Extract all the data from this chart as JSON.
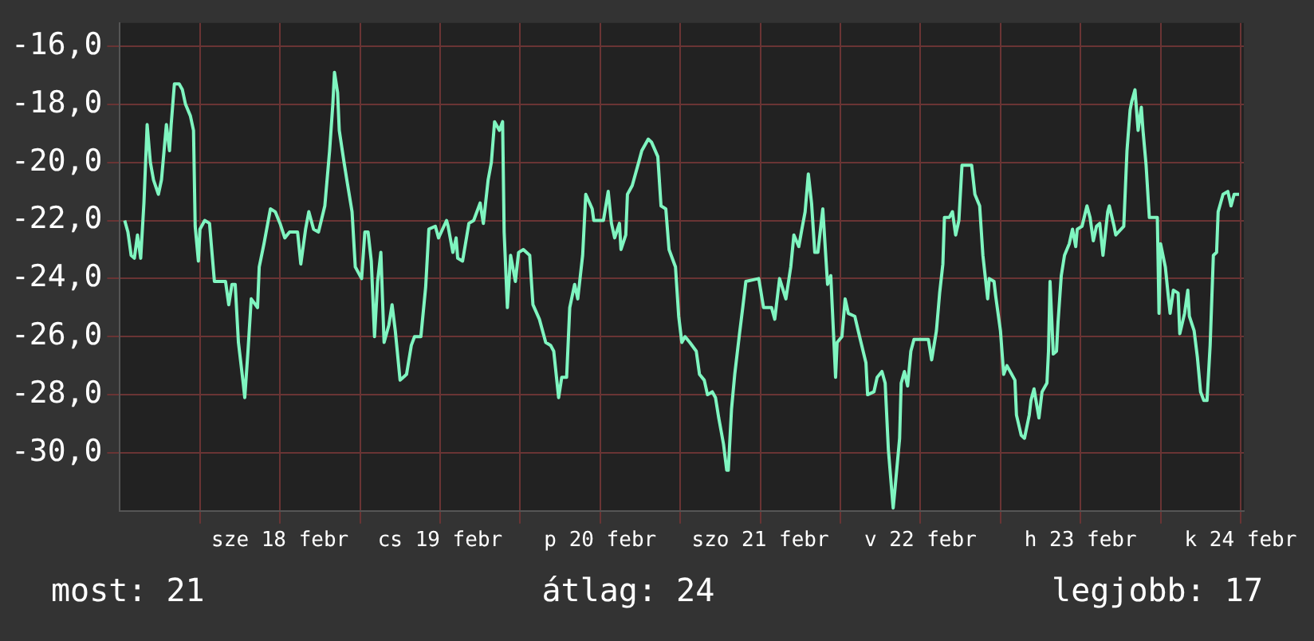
{
  "chart_data": {
    "type": "line",
    "xlim": [
      "--02-17T12:00",
      "--02-24T12:29"
    ],
    "ylim": [
      -32,
      -15.2
    ],
    "xticks": [
      {
        "value": "--02-18T00:00",
        "label": null
      },
      {
        "value": "--02-18T12:00",
        "label": "sze 18 febr"
      },
      {
        "value": "--02-19T00:00",
        "label": null
      },
      {
        "value": "--02-19T12:00",
        "label": "cs 19 febr"
      },
      {
        "value": "--02-20T00:00",
        "label": null
      },
      {
        "value": "--02-20T12:00",
        "label": "p 20 febr"
      },
      {
        "value": "--02-21T00:00",
        "label": null
      },
      {
        "value": "--02-21T12:00",
        "label": "szo 21 febr"
      },
      {
        "value": "--02-22T00:00",
        "label": null
      },
      {
        "value": "--02-22T12:00",
        "label": "v 22 febr"
      },
      {
        "value": "--02-23T00:00",
        "label": null
      },
      {
        "value": "--02-23T12:00",
        "label": "h 23 febr"
      },
      {
        "value": "--02-24T00:00",
        "label": null
      },
      {
        "value": "--02-24T12:00",
        "label": "k 24 febr"
      }
    ],
    "yticks": [
      {
        "value": -30,
        "label": "-30,0"
      },
      {
        "value": -28,
        "label": "-28,0"
      },
      {
        "value": -26,
        "label": "-26,0"
      },
      {
        "value": -24,
        "label": "-24,0"
      },
      {
        "value": -22,
        "label": "-22,0"
      },
      {
        "value": -20,
        "label": "-20,0"
      },
      {
        "value": -18,
        "label": "-18,0"
      },
      {
        "value": -16,
        "label": "-16,0"
      }
    ],
    "grid": true,
    "annotations": [
      "most: 21",
      "átlag: 24",
      "legjobb: 17"
    ],
    "series": [
      {
        "color": "#7ff5c0",
        "x": [
          "--02-17T12:43",
          "--02-17T13:12",
          "--02-17T13:41",
          "--02-17T14:10",
          "--02-17T14:38",
          "--02-17T15:07",
          "--02-17T15:36",
          "--02-17T16:05",
          "--02-17T16:34",
          "--02-17T17:02",
          "--02-17T17:46",
          "--02-17T18:14",
          "--02-17T18:58",
          "--02-17T19:26",
          "--02-17T19:41",
          "--02-17T20:10",
          "--02-17T20:53",
          "--02-17T21:22",
          "--02-17T21:50",
          "--02-17T22:34",
          "--02-17T23:02",
          "--02-17T23:17",
          "--02-17T23:46",
          "--02-18T00:00",
          "--02-18T00:43",
          "--02-18T01:26",
          "--02-18T02:10",
          "--02-18T03:50",
          "--02-18T04:19",
          "--02-18T04:48",
          "--02-18T05:17",
          "--02-18T05:46",
          "--02-18T06:29",
          "--02-18T06:43",
          "--02-18T07:12",
          "--02-18T07:41",
          "--02-18T08:38",
          "--02-18T08:53",
          "--02-18T09:36",
          "--02-18T10:34",
          "--02-18T11:17",
          "--02-18T12:00",
          "--02-18T12:43",
          "--02-18T13:26",
          "--02-18T14:38",
          "--02-18T15:07",
          "--02-18T15:50",
          "--02-18T16:19",
          "--02-18T17:02",
          "--02-18T17:46",
          "--02-18T18:43",
          "--02-18T19:26",
          "--02-18T19:55",
          "--02-18T20:10",
          "--02-18T20:38",
          "--02-18T20:53",
          "--02-18T21:36",
          "--02-18T22:05",
          "--02-18T22:48",
          "--02-18T23:17",
          "--02-19T00:14",
          "--02-19T00:43",
          "--02-19T01:12",
          "--02-19T01:41",
          "--02-19T02:10",
          "--02-19T02:38",
          "--02-19T03:07",
          "--02-19T03:36",
          "--02-19T04:19",
          "--02-19T04:48",
          "--02-19T05:17",
          "--02-19T06:00",
          "--02-19T06:58",
          "--02-19T07:41",
          "--02-19T08:10",
          "--02-19T09:07",
          "--02-19T09:50",
          "--02-19T10:19",
          "--02-19T11:17",
          "--02-19T11:46",
          "--02-19T12:58",
          "--02-19T13:12",
          "--02-19T13:55",
          "--02-19T14:24",
          "--02-19T14:38",
          "--02-19T15:22",
          "--02-19T16:19",
          "--02-19T17:02",
          "--02-19T18:00",
          "--02-19T18:29",
          "--02-19T19:12",
          "--02-19T19:41",
          "--02-19T20:10",
          "--02-19T20:53",
          "--02-19T21:22",
          "--02-19T21:36",
          "--02-19T22:05",
          "--02-19T22:34",
          "--02-19T23:17",
          "--02-19T23:46",
          "--02-20T00:29",
          "--02-20T01:26",
          "--02-20T01:55",
          "--02-20T02:53",
          "--02-20T03:50",
          "--02-20T04:34",
          "--02-20T05:02",
          "--02-20T05:46",
          "--02-20T06:14",
          "--02-20T06:58",
          "--02-20T07:26",
          "--02-20T08:10",
          "--02-20T08:38",
          "--02-20T09:22",
          "--02-20T09:50",
          "--02-20T10:48",
          "--02-20T11:02",
          "--02-20T12:29",
          "--02-20T13:12",
          "--02-20T13:41",
          "--02-20T14:10",
          "--02-20T14:53",
          "--02-20T15:07",
          "--02-20T15:50",
          "--02-20T16:05",
          "--02-20T16:48",
          "--02-20T17:46",
          "--02-20T18:14",
          "--02-20T19:12",
          "--02-20T19:41",
          "--02-20T20:38",
          "--02-20T21:07",
          "--02-20T21:50",
          "--02-20T22:19",
          "--02-20T23:17",
          "--02-20T23:46",
          "--02-21T00:14",
          "--02-21T00:43",
          "--02-21T01:26",
          "--02-21T02:24",
          "--02-21T02:53",
          "--02-21T03:36",
          "--02-21T04:05",
          "--02-21T04:48",
          "--02-21T05:17",
          "--02-21T05:46",
          "--02-21T06:29",
          "--02-21T06:58",
          "--02-21T07:12",
          "--02-21T07:41",
          "--02-21T08:10",
          "--02-21T08:53",
          "--02-21T09:22",
          "--02-21T09:50",
          "--02-21T11:46",
          "--02-21T12:29",
          "--02-21T13:41",
          "--02-21T14:10",
          "--02-21T14:53",
          "--02-21T15:50",
          "--02-21T16:34",
          "--02-21T17:02",
          "--02-21T17:46",
          "--02-21T18:14",
          "--02-21T18:43",
          "--02-21T19:12",
          "--02-21T19:41",
          "--02-21T20:10",
          "--02-21T20:38",
          "--02-21T21:22",
          "--02-21T22:05",
          "--02-21T22:34",
          "--02-21T23:17",
          "--02-21T23:31",
          "--02-22T00:14",
          "--02-22T00:43",
          "--02-22T01:12",
          "--02-22T02:10",
          "--02-22T02:53",
          "--02-22T03:50",
          "--02-22T04:05",
          "--02-22T05:02",
          "--02-22T05:31",
          "--02-22T06:14",
          "--02-22T06:43",
          "--02-22T07:12",
          "--02-22T07:55",
          "--02-22T08:10",
          "--02-22T08:53",
          "--02-22T09:07",
          "--02-22T09:36",
          "--02-22T10:05",
          "--02-22T10:34",
          "--02-22T11:02",
          "--02-22T13:12",
          "--02-22T13:41",
          "--02-22T14:24",
          "--02-22T14:53",
          "--02-22T15:22",
          "--02-22T15:36",
          "--02-22T16:19",
          "--02-22T16:48",
          "--02-22T17:17",
          "--02-22T17:46",
          "--02-22T18:14",
          "--02-22T19:41",
          "--02-22T20:10",
          "--02-22T20:53",
          "--02-22T21:22",
          "--02-22T22:05",
          "--02-22T22:19",
          "--02-22T23:02",
          "--02-22T23:17",
          "--02-23T00:00",
          "--02-23T00:29",
          "--02-23T00:58",
          "--02-23T02:10",
          "--02-23T02:24",
          "--02-23T03:07",
          "--02-23T03:36",
          "--02-23T04:19",
          "--02-23T04:34",
          "--02-23T05:02",
          "--02-23T05:46",
          "--02-23T06:14",
          "--02-23T06:58",
          "--02-23T07:12",
          "--02-23T07:26",
          "--02-23T07:55",
          "--02-23T08:24",
          "--02-23T08:38",
          "--02-23T09:07",
          "--02-23T09:36",
          "--02-23T10:19",
          "--02-23T10:48",
          "--02-23T11:17",
          "--02-23T11:31",
          "--02-23T12:14",
          "--02-23T12:58",
          "--02-23T13:26",
          "--02-23T13:55",
          "--02-23T14:24",
          "--02-23T14:53",
          "--02-23T15:22",
          "--02-23T16:05",
          "--02-23T16:19",
          "--02-23T17:02",
          "--02-23T17:17",
          "--02-23T18:29",
          "--02-23T18:58",
          "--02-23T19:26",
          "--02-23T19:41",
          "--02-23T20:10",
          "--02-23T20:38",
          "--02-23T21:07",
          "--02-23T21:22",
          "--02-23T21:50",
          "--02-23T22:19",
          "--02-23T23:31",
          "--02-23T23:46",
          "--02-24T00:00",
          "--02-24T00:43",
          "--02-24T01:12",
          "--02-24T01:26",
          "--02-24T01:55",
          "--02-24T02:38",
          "--02-24T02:53",
          "--02-24T03:36",
          "--02-24T04:05",
          "--02-24T04:19",
          "--02-24T05:02",
          "--02-24T05:31",
          "--02-24T06:00",
          "--02-24T06:29",
          "--02-24T06:58",
          "--02-24T07:26",
          "--02-24T07:55",
          "--02-24T08:24",
          "--02-24T08:38",
          "--02-24T09:22",
          "--02-24T10:05",
          "--02-24T10:34",
          "--02-24T11:02",
          "--02-24T11:46"
        ],
        "values": [
          -22.0,
          -22.4,
          -23.2,
          -23.3,
          -22.5,
          -23.3,
          -21.4,
          -18.7,
          -20.0,
          -20.6,
          -21.1,
          -20.6,
          -18.7,
          -19.6,
          -18.7,
          -17.3,
          -17.3,
          -17.5,
          -18.0,
          -18.4,
          -18.9,
          -22.2,
          -23.4,
          -22.3,
          -22.0,
          -22.1,
          -24.1,
          -24.1,
          -24.9,
          -24.2,
          -24.2,
          -26.2,
          -27.6,
          -28.1,
          -26.5,
          -24.7,
          -25.0,
          -23.6,
          -22.8,
          -21.6,
          -21.7,
          -22.1,
          -22.6,
          -22.4,
          -22.4,
          -23.5,
          -22.3,
          -21.7,
          -22.3,
          -22.4,
          -21.5,
          -19.6,
          -18.0,
          -16.9,
          -17.6,
          -18.9,
          -20.0,
          -20.7,
          -21.7,
          -23.6,
          -24.0,
          -22.4,
          -22.4,
          -23.4,
          -26.0,
          -24.1,
          -23.1,
          -26.2,
          -25.6,
          -24.9,
          -25.8,
          -27.5,
          -27.3,
          -26.3,
          -26.0,
          -26.0,
          -24.3,
          -22.3,
          -22.2,
          -22.6,
          -22.0,
          -22.2,
          -23.1,
          -22.6,
          -23.3,
          -23.4,
          -22.1,
          -22.0,
          -21.4,
          -22.1,
          -20.6,
          -20.0,
          -18.6,
          -18.9,
          -18.6,
          -22.4,
          -25.0,
          -23.2,
          -24.1,
          -23.1,
          -23.0,
          -23.2,
          -24.9,
          -25.4,
          -26.2,
          -26.3,
          -26.5,
          -28.1,
          -27.4,
          -27.4,
          -25.0,
          -24.2,
          -24.7,
          -23.2,
          -21.1,
          -21.6,
          -22.0,
          -22.0,
          -21.0,
          -22.1,
          -22.6,
          -22.1,
          -23.0,
          -22.5,
          -21.1,
          -20.8,
          -20.0,
          -19.6,
          -19.2,
          -19.3,
          -19.8,
          -21.5,
          -21.6,
          -23.0,
          -23.6,
          -25.3,
          -26.2,
          -26.0,
          -26.2,
          -26.5,
          -27.3,
          -27.5,
          -28.0,
          -27.9,
          -28.1,
          -28.8,
          -29.7,
          -30.6,
          -30.6,
          -28.5,
          -27.3,
          -25.9,
          -25.0,
          -24.1,
          -24.0,
          -25.0,
          -25.0,
          -25.4,
          -24.0,
          -24.7,
          -23.6,
          -22.5,
          -22.9,
          -22.3,
          -21.7,
          -20.4,
          -21.4,
          -23.1,
          -23.1,
          -21.6,
          -24.2,
          -23.9,
          -27.4,
          -26.2,
          -26.0,
          -24.7,
          -25.2,
          -25.3,
          -26.0,
          -26.9,
          -28.0,
          -27.9,
          -27.4,
          -27.2,
          -27.6,
          -29.9,
          -31.9,
          -31.3,
          -29.5,
          -27.6,
          -27.2,
          -27.7,
          -26.5,
          -26.1,
          -26.1,
          -26.8,
          -25.8,
          -24.5,
          -23.5,
          -21.9,
          -21.9,
          -21.7,
          -22.5,
          -22.0,
          -20.1,
          -20.1,
          -21.1,
          -21.5,
          -23.2,
          -24.7,
          -24.0,
          -24.1,
          -24.6,
          -25.8,
          -27.3,
          -27.0,
          -27.5,
          -28.7,
          -29.4,
          -29.5,
          -28.7,
          -28.2,
          -27.8,
          -28.8,
          -27.9,
          -27.6,
          -26.5,
          -24.1,
          -26.6,
          -26.5,
          -25.5,
          -23.9,
          -23.2,
          -22.8,
          -22.3,
          -22.9,
          -22.3,
          -22.2,
          -21.5,
          -21.9,
          -22.7,
          -22.2,
          -22.1,
          -23.2,
          -21.7,
          -21.5,
          -22.2,
          -22.5,
          -22.2,
          -19.6,
          -18.2,
          -17.9,
          -17.5,
          -18.9,
          -18.1,
          -18.9,
          -20.1,
          -21.9,
          -21.9,
          -25.2,
          -22.8,
          -23.6,
          -24.7,
          -25.2,
          -24.4,
          -24.5,
          -25.9,
          -25.2,
          -24.4,
          -25.3,
          -25.8,
          -26.7,
          -27.9,
          -28.2,
          -28.2,
          -26.3,
          -23.2,
          -23.1,
          -21.7,
          -21.1,
          -21.0,
          -21.5,
          -21.1,
          -21.1
        ]
      }
    ]
  }
}
